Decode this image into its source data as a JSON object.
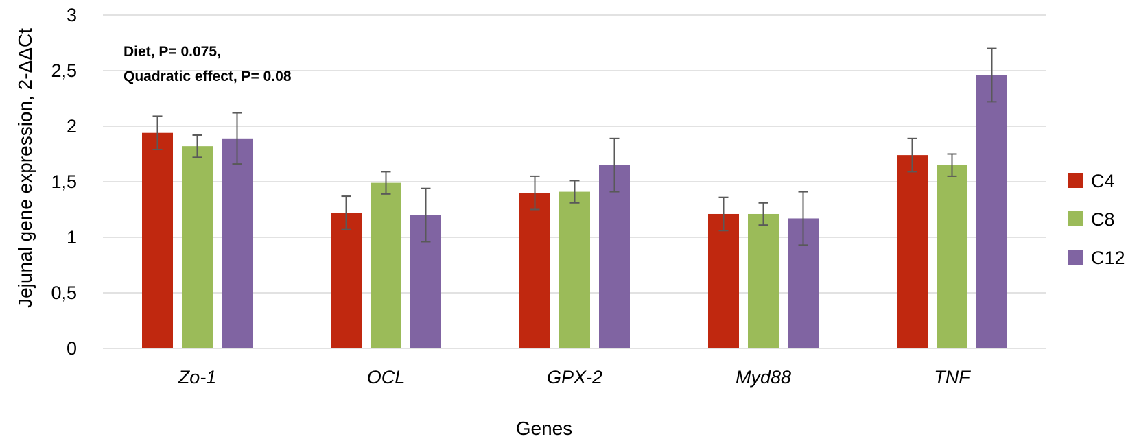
{
  "chart_data": {
    "type": "bar",
    "title": "",
    "xlabel": "Genes",
    "ylabel": "Jejunal gene expression, 2-ΔΔCt",
    "ylim": [
      0,
      3
    ],
    "yticks": [
      0,
      0.5,
      1,
      1.5,
      2,
      2.5,
      3
    ],
    "ytick_labels": [
      "0",
      "0,5",
      "1",
      "1,5",
      "2",
      "2,5",
      "3"
    ],
    "grid": true,
    "legend_position": "right",
    "categories": [
      "Zo-1",
      "OCL",
      "GPX-2",
      "Myd88",
      "TNF"
    ],
    "series": [
      {
        "name": "C4",
        "color": "#c0280f",
        "values": [
          1.94,
          1.22,
          1.4,
          1.21,
          1.74
        ],
        "errors": [
          0.15,
          0.15,
          0.15,
          0.15,
          0.15
        ]
      },
      {
        "name": "C8",
        "color": "#9bbb59",
        "values": [
          1.82,
          1.49,
          1.41,
          1.21,
          1.65
        ],
        "errors": [
          0.1,
          0.1,
          0.1,
          0.1,
          0.1
        ]
      },
      {
        "name": "C12",
        "color": "#8064a2",
        "values": [
          1.89,
          1.2,
          1.65,
          1.17,
          2.46
        ],
        "errors": [
          0.23,
          0.24,
          0.24,
          0.24,
          0.24
        ]
      }
    ],
    "annotations": [
      "Diet, P= 0.075,",
      "Quadratic effect, P= 0.08"
    ]
  }
}
